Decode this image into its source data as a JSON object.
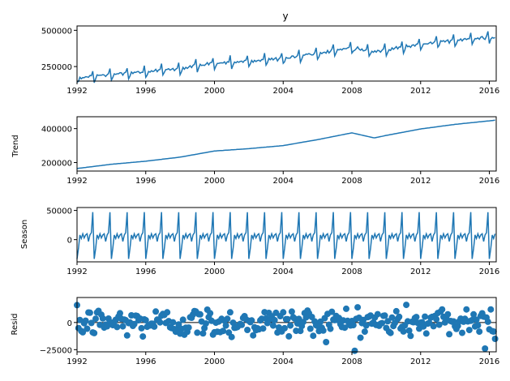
{
  "chart_data": [
    {
      "type": "line",
      "panel": "observed",
      "title": "y",
      "ylabel": "",
      "xlim": [
        1992,
        2016.4
      ],
      "ylim": [
        150000,
        530000
      ],
      "x_ticks": [
        "1992",
        "1996",
        "2000",
        "2004",
        "2008",
        "2012",
        "2016"
      ],
      "y_ticks": [
        "250000",
        "500000"
      ],
      "trend_anchor_years": [
        1992,
        1994,
        1996,
        1998,
        2000,
        2002,
        2004,
        2006,
        2008,
        2009.3,
        2010,
        2012,
        2014,
        2016.4
      ],
      "trend_anchor_values": [
        165000,
        190000,
        208000,
        232000,
        268000,
        282000,
        300000,
        335000,
        375000,
        345000,
        360000,
        398000,
        425000,
        450000
      ],
      "seasonal_amplitude": 47000,
      "series": [
        {
          "color": "#1f77b4"
        }
      ]
    },
    {
      "type": "line",
      "panel": "trend",
      "title": "",
      "ylabel": "Trend",
      "xlim": [
        1992,
        2016.4
      ],
      "ylim": [
        150000,
        470000
      ],
      "x_ticks": [
        "1992",
        "1996",
        "2000",
        "2004",
        "2008",
        "2012",
        "2016"
      ],
      "y_ticks": [
        "200000",
        "400000"
      ],
      "anchor_years": [
        1992,
        1994,
        1996,
        1998,
        2000,
        2002,
        2004,
        2006,
        2008,
        2009.3,
        2010,
        2012,
        2014,
        2016.4
      ],
      "anchor_values": [
        165000,
        190000,
        208000,
        232000,
        268000,
        282000,
        300000,
        335000,
        375000,
        345000,
        360000,
        398000,
        425000,
        450000
      ],
      "series": [
        {
          "color": "#1f77b4"
        }
      ]
    },
    {
      "type": "line",
      "panel": "season",
      "title": "",
      "ylabel": "Season",
      "xlim": [
        1992,
        2016.4
      ],
      "ylim": [
        -38000,
        55000
      ],
      "x_ticks": [
        "1992",
        "1996",
        "2000",
        "2004",
        "2008",
        "2012",
        "2016"
      ],
      "y_ticks": [
        "0",
        "50000"
      ],
      "monthly_pattern": [
        -33000,
        -15000,
        8000,
        2000,
        10000,
        3000,
        8000,
        10000,
        -3000,
        8000,
        12000,
        47000
      ],
      "series": [
        {
          "color": "#1f77b4"
        }
      ]
    },
    {
      "type": "scatter",
      "panel": "resid",
      "title": "",
      "ylabel": "Resid",
      "xlim": [
        1992,
        2016.4
      ],
      "ylim": [
        -27000,
        23000
      ],
      "x_ticks": [
        "1992",
        "1996",
        "2000",
        "2004",
        "2008",
        "2012",
        "2016"
      ],
      "y_ticks": [
        "−25000",
        "0"
      ],
      "baseline": 0,
      "typical_spread": 7000,
      "extreme_range": [
        -24000,
        21000
      ],
      "series": [
        {
          "color": "#1f77b4"
        }
      ]
    }
  ]
}
